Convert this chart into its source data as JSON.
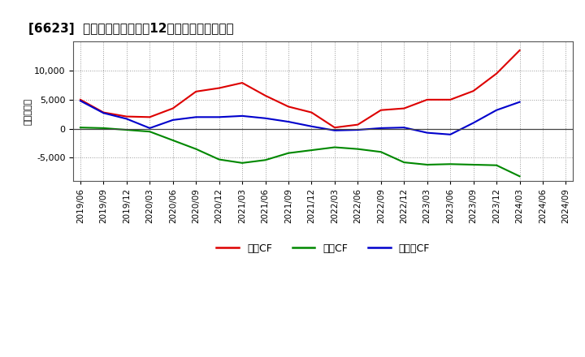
{
  "title": "[6623]  キャッシュフローの12か月移動合計の推移",
  "ylabel": "（百万円）",
  "background_color": "#ffffff",
  "plot_bg_color": "#ffffff",
  "grid_color": "#999999",
  "x_labels": [
    "2019/06",
    "2019/09",
    "2019/12",
    "2020/03",
    "2020/06",
    "2020/09",
    "2020/12",
    "2021/03",
    "2021/06",
    "2021/09",
    "2021/12",
    "2022/03",
    "2022/06",
    "2022/09",
    "2022/12",
    "2023/03",
    "2023/06",
    "2023/09",
    "2023/12",
    "2024/03",
    "2024/06",
    "2024/09"
  ],
  "eigyo_cf": [
    5000,
    2800,
    2100,
    2000,
    3500,
    6400,
    7000,
    7900,
    5700,
    3800,
    2800,
    200,
    700,
    3200,
    3500,
    5000,
    5000,
    6500,
    9500,
    13500,
    null,
    null
  ],
  "toshi_cf": [
    200,
    100,
    -200,
    -500,
    -2000,
    -3500,
    -5300,
    -5900,
    -5400,
    -4200,
    -3700,
    -3200,
    -3500,
    -4000,
    -5800,
    -6200,
    -6100,
    -6200,
    -6300,
    -8200,
    null,
    null
  ],
  "free_cf": [
    4800,
    2700,
    1700,
    100,
    1500,
    2000,
    2000,
    2200,
    1800,
    1200,
    400,
    -300,
    -200,
    100,
    200,
    -700,
    -1000,
    1000,
    3200,
    4600,
    null,
    null
  ],
  "eigyo_color": "#dd0000",
  "toshi_color": "#008800",
  "free_color": "#0000cc",
  "ylim": [
    -9000,
    15000
  ],
  "yticks": [
    -5000,
    0,
    5000,
    10000
  ],
  "legend_labels": [
    "営業CF",
    "投資CF",
    "フリーCF"
  ]
}
